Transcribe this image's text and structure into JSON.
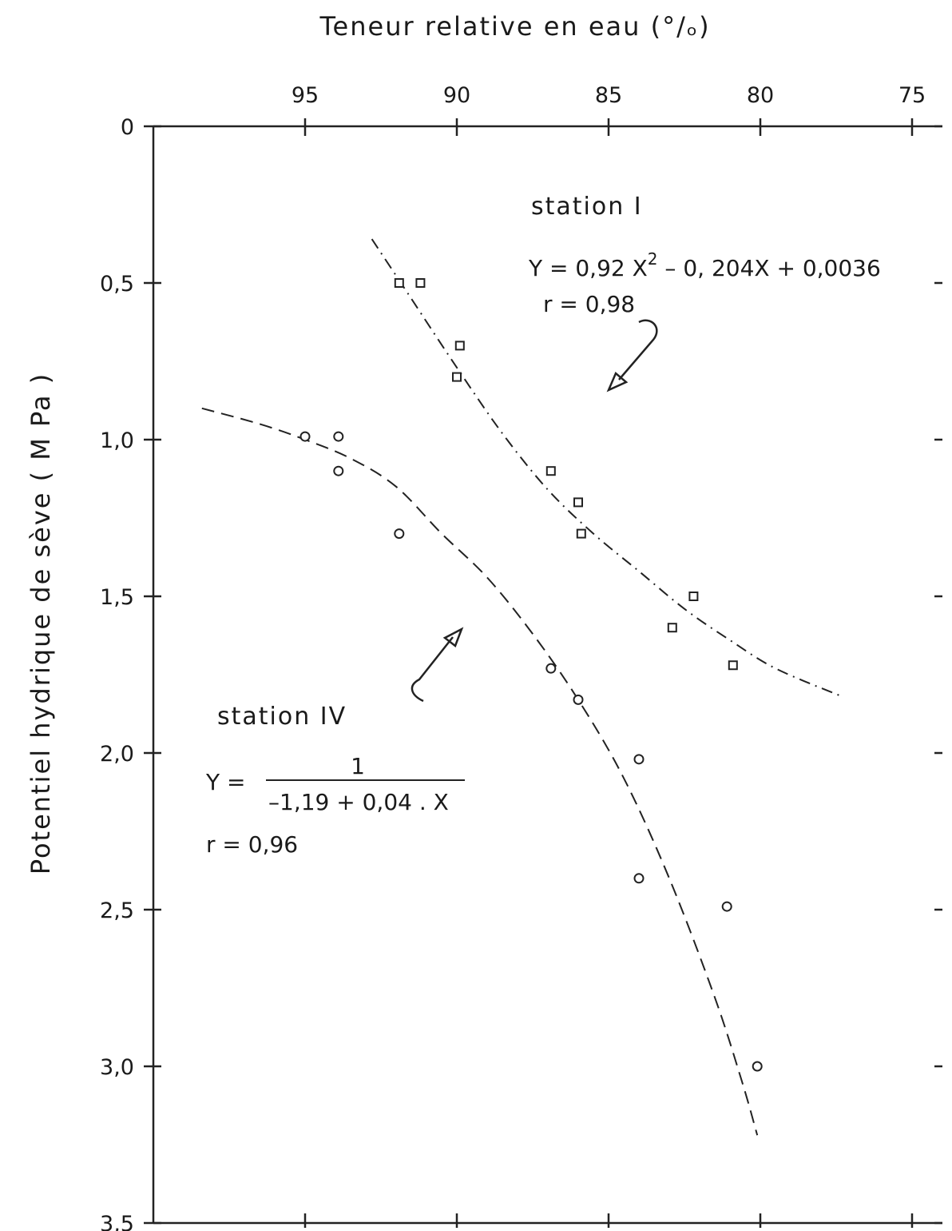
{
  "chart_data": {
    "type": "scatter",
    "title": "",
    "xlabel": "Teneur relative en eau (°/ₒ)",
    "ylabel": "Potentiel hydrique de sève ( M Pa )",
    "xlim": [
      100,
      74
    ],
    "ylim": [
      0,
      3.5
    ],
    "x_inverted": true,
    "y_inverted": true,
    "x_ticks": [
      95,
      90,
      85,
      80,
      75
    ],
    "x_tick_labels": [
      "95",
      "90",
      "85",
      "80",
      "75"
    ],
    "y_ticks": [
      0,
      0.5,
      1.0,
      1.5,
      2.0,
      2.5,
      3.0,
      3.5
    ],
    "y_tick_labels": [
      "0",
      "0,5",
      "1,0",
      "1,5",
      "2,0",
      "2,5",
      "3,0",
      "3,5"
    ],
    "grid": false,
    "series": [
      {
        "name": "station I",
        "marker": "square",
        "line_style": "dash-dot",
        "equation_lines": [
          "Y = 0,92 X",
          "2",
          " – 0, 204X + 0,0036"
        ],
        "r_text": "r = 0,98",
        "points": [
          {
            "x": 91.9,
            "y": 0.5
          },
          {
            "x": 91.2,
            "y": 0.5
          },
          {
            "x": 89.9,
            "y": 0.7
          },
          {
            "x": 90.0,
            "y": 0.8
          },
          {
            "x": 86.9,
            "y": 1.1
          },
          {
            "x": 86.0,
            "y": 1.2
          },
          {
            "x": 85.9,
            "y": 1.3
          },
          {
            "x": 82.2,
            "y": 1.5
          },
          {
            "x": 82.9,
            "y": 1.6
          },
          {
            "x": 80.9,
            "y": 1.72
          }
        ],
        "fit_curve": [
          {
            "x": 92.8,
            "y": 0.36
          },
          {
            "x": 91.5,
            "y": 0.55
          },
          {
            "x": 90.0,
            "y": 0.77
          },
          {
            "x": 88.5,
            "y": 0.98
          },
          {
            "x": 87.0,
            "y": 1.16
          },
          {
            "x": 85.5,
            "y": 1.3
          },
          {
            "x": 84.0,
            "y": 1.42
          },
          {
            "x": 82.5,
            "y": 1.54
          },
          {
            "x": 81.0,
            "y": 1.64
          },
          {
            "x": 79.5,
            "y": 1.73
          },
          {
            "x": 77.3,
            "y": 1.82
          }
        ]
      },
      {
        "name": "station IV",
        "marker": "circle",
        "line_style": "dashed",
        "equation_prefix": "Y =",
        "equation_numerator": "1",
        "equation_denominator": "–1,19 + 0,04 . X",
        "r_text": "r = 0,96",
        "points": [
          {
            "x": 95.0,
            "y": 0.99
          },
          {
            "x": 93.9,
            "y": 0.99
          },
          {
            "x": 93.9,
            "y": 1.1
          },
          {
            "x": 91.9,
            "y": 1.3
          },
          {
            "x": 86.9,
            "y": 1.73
          },
          {
            "x": 86.0,
            "y": 1.83
          },
          {
            "x": 84.0,
            "y": 2.02
          },
          {
            "x": 84.0,
            "y": 2.4
          },
          {
            "x": 81.1,
            "y": 2.49
          },
          {
            "x": 80.1,
            "y": 3.0
          }
        ],
        "fit_curve": [
          {
            "x": 98.4,
            "y": 0.9
          },
          {
            "x": 96.5,
            "y": 0.95
          },
          {
            "x": 95.0,
            "y": 1.0
          },
          {
            "x": 93.5,
            "y": 1.06
          },
          {
            "x": 92.0,
            "y": 1.15
          },
          {
            "x": 90.5,
            "y": 1.3
          },
          {
            "x": 89.0,
            "y": 1.44
          },
          {
            "x": 87.5,
            "y": 1.62
          },
          {
            "x": 86.0,
            "y": 1.83
          },
          {
            "x": 84.5,
            "y": 2.08
          },
          {
            "x": 83.0,
            "y": 2.4
          },
          {
            "x": 81.5,
            "y": 2.78
          },
          {
            "x": 80.6,
            "y": 3.05
          },
          {
            "x": 80.1,
            "y": 3.22
          }
        ]
      }
    ]
  }
}
